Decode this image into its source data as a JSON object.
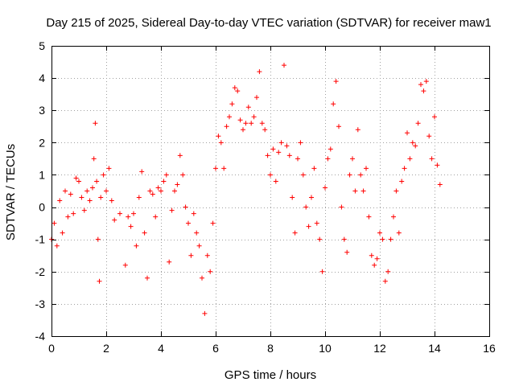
{
  "chart_data": {
    "type": "scatter",
    "title": "Day 215 of 2025, Sidereal Day-to-day VTEC variation (SDTVAR) for receiver maw1",
    "xlabel": "GPS time / hours",
    "ylabel": "SDTVAR / TECUs",
    "xlim": [
      0,
      16
    ],
    "ylim": [
      -4,
      5
    ],
    "x_ticks": [
      0,
      2,
      4,
      6,
      8,
      10,
      12,
      14,
      16
    ],
    "y_ticks": [
      -4,
      -3,
      -2,
      -1,
      0,
      1,
      2,
      3,
      4,
      5
    ],
    "x_tick_labels": [
      "0",
      "2",
      "4",
      "6",
      "8",
      "10",
      "12",
      "14",
      "16"
    ],
    "y_tick_labels": [
      "-4",
      "-3",
      "-2",
      "-1",
      "0",
      "1",
      "2",
      "3",
      "4",
      "5"
    ],
    "grid": true,
    "marker": "+",
    "marker_color": "#ff0000",
    "series": [
      {
        "name": "SDTVAR",
        "x": [
          0.0,
          0.1,
          0.2,
          0.3,
          0.4,
          0.5,
          0.6,
          0.7,
          0.8,
          0.9,
          1.0,
          1.1,
          1.2,
          1.3,
          1.4,
          1.5,
          1.55,
          1.6,
          1.65,
          1.7,
          1.75,
          1.8,
          1.9,
          2.0,
          2.1,
          2.2,
          2.3,
          2.5,
          2.7,
          2.8,
          2.9,
          3.0,
          3.1,
          3.2,
          3.3,
          3.4,
          3.5,
          3.6,
          3.7,
          3.8,
          3.9,
          4.0,
          4.1,
          4.2,
          4.3,
          4.4,
          4.5,
          4.6,
          4.7,
          4.8,
          4.9,
          5.0,
          5.1,
          5.2,
          5.3,
          5.4,
          5.5,
          5.6,
          5.7,
          5.8,
          5.9,
          6.0,
          6.1,
          6.2,
          6.3,
          6.4,
          6.5,
          6.6,
          6.7,
          6.8,
          6.9,
          7.0,
          7.1,
          7.2,
          7.3,
          7.4,
          7.5,
          7.6,
          7.7,
          7.8,
          7.9,
          8.0,
          8.1,
          8.2,
          8.3,
          8.4,
          8.5,
          8.6,
          8.7,
          8.8,
          8.9,
          9.0,
          9.1,
          9.2,
          9.3,
          9.4,
          9.5,
          9.6,
          9.7,
          9.8,
          9.9,
          10.0,
          10.1,
          10.2,
          10.3,
          10.4,
          10.5,
          10.6,
          10.7,
          10.8,
          10.9,
          11.0,
          11.1,
          11.2,
          11.3,
          11.4,
          11.5,
          11.6,
          11.7,
          11.8,
          11.9,
          12.0,
          12.1,
          12.2,
          12.3,
          12.4,
          12.5,
          12.6,
          12.7,
          12.8,
          12.9,
          13.0,
          13.1,
          13.2,
          13.3,
          13.4,
          13.5,
          13.6,
          13.7,
          13.8,
          13.9,
          14.0,
          14.1,
          14.2
        ],
        "y": [
          -1.0,
          -0.5,
          -1.2,
          0.2,
          -0.8,
          0.5,
          -0.3,
          0.4,
          -0.2,
          0.9,
          0.8,
          0.3,
          -0.1,
          0.5,
          0.2,
          0.6,
          1.5,
          2.6,
          0.8,
          -1.0,
          -2.3,
          0.3,
          1.0,
          0.5,
          1.2,
          0.2,
          -0.4,
          -0.2,
          -1.8,
          -0.3,
          -0.6,
          -0.2,
          -1.2,
          0.3,
          1.1,
          -0.8,
          -2.2,
          0.5,
          0.4,
          -0.3,
          0.6,
          0.5,
          0.8,
          1.0,
          -1.7,
          -0.1,
          0.5,
          0.7,
          1.6,
          1.0,
          0.0,
          -0.5,
          -1.5,
          -0.2,
          -0.8,
          -1.2,
          -2.2,
          -3.3,
          -1.5,
          -2.0,
          -0.5,
          1.2,
          2.2,
          2.0,
          1.2,
          2.5,
          2.8,
          3.2,
          3.7,
          3.6,
          2.7,
          2.4,
          2.6,
          3.1,
          2.6,
          2.8,
          3.4,
          4.2,
          2.6,
          2.4,
          1.6,
          1.0,
          1.8,
          0.8,
          1.7,
          2.0,
          4.4,
          1.9,
          1.6,
          0.3,
          -0.8,
          1.5,
          2.0,
          1.0,
          0.0,
          -0.6,
          0.3,
          1.2,
          -0.5,
          -1.0,
          -2.0,
          0.6,
          1.5,
          1.8,
          3.2,
          3.9,
          2.5,
          0.0,
          -1.0,
          -1.4,
          1.0,
          1.5,
          0.5,
          2.4,
          1.0,
          0.5,
          1.2,
          -0.3,
          -1.5,
          -1.8,
          -1.6,
          -0.8,
          -1.0,
          -2.3,
          -2.0,
          -1.0,
          -0.3,
          0.5,
          -0.8,
          0.8,
          1.2,
          2.3,
          1.5,
          2.0,
          1.9,
          2.6,
          3.8,
          3.6,
          3.9,
          2.2,
          1.5,
          2.8,
          1.3,
          0.7
        ]
      }
    ]
  }
}
